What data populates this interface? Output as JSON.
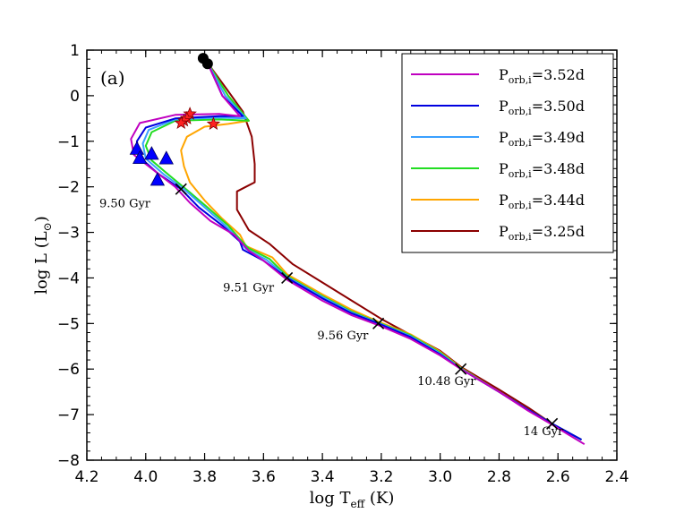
{
  "chart_data": {
    "type": "line",
    "panel_label": "(a)",
    "xlabel": {
      "main": "log T",
      "sub": "eff",
      "unit": " (K)"
    },
    "ylabel": {
      "main": "log L (L",
      "sub": "⊙",
      "close": ")"
    },
    "xlim": [
      4.2,
      2.4
    ],
    "ylim": [
      -8,
      1
    ],
    "x_ticks": [
      4.2,
      4.0,
      3.8,
      3.6,
      3.4,
      3.2,
      3.0,
      2.8,
      2.6,
      2.4
    ],
    "x_tick_labels": [
      "4.2",
      "4.0",
      "3.8",
      "3.6",
      "3.4",
      "3.2",
      "3.0",
      "2.8",
      "2.6",
      "2.4"
    ],
    "y_ticks": [
      1,
      0,
      -1,
      -2,
      -3,
      -4,
      -5,
      -6,
      -7,
      -8
    ],
    "y_tick_labels": [
      "1",
      "0",
      "−1",
      "−2",
      "−3",
      "−4",
      "−5",
      "−6",
      "−7",
      "−8"
    ],
    "legend": {
      "position": "top-right",
      "prefix": "P",
      "sub": "orb,i",
      "entries": [
        {
          "label": "=3.52d",
          "color": "#c000c0"
        },
        {
          "label": "=3.50d",
          "color": "#0000e0"
        },
        {
          "label": "=3.49d",
          "color": "#3aa0ff"
        },
        {
          "label": "=3.48d",
          "color": "#22dd22"
        },
        {
          "label": "=3.44d",
          "color": "#ffa500"
        },
        {
          "label": "=3.25d",
          "color": "#8b0000"
        }
      ]
    },
    "series": [
      {
        "name": "P_orb,i=3.52d",
        "color": "#c000c0",
        "points": [
          [
            3.79,
            0.72
          ],
          [
            3.74,
            0.0
          ],
          [
            3.68,
            -0.45
          ],
          [
            3.75,
            -0.4
          ],
          [
            3.9,
            -0.42
          ],
          [
            4.02,
            -0.6
          ],
          [
            4.05,
            -0.95
          ],
          [
            4.04,
            -1.3
          ],
          [
            3.98,
            -1.6
          ],
          [
            3.9,
            -2.0
          ],
          [
            3.85,
            -2.35
          ],
          [
            3.78,
            -2.75
          ],
          [
            3.7,
            -3.05
          ],
          [
            3.65,
            -3.4
          ],
          [
            3.6,
            -3.62
          ],
          [
            3.52,
            -4.04
          ],
          [
            3.4,
            -4.5
          ],
          [
            3.3,
            -4.82
          ],
          [
            3.2,
            -5.06
          ],
          [
            3.1,
            -5.34
          ],
          [
            3.0,
            -5.7
          ],
          [
            2.93,
            -6.0
          ],
          [
            2.8,
            -6.5
          ],
          [
            2.7,
            -6.92
          ],
          [
            2.62,
            -7.22
          ],
          [
            2.51,
            -7.65
          ]
        ]
      },
      {
        "name": "P_orb,i=3.50d",
        "color": "#0000e0",
        "points": [
          [
            3.79,
            0.72
          ],
          [
            3.74,
            0.0
          ],
          [
            3.67,
            -0.45
          ],
          [
            3.75,
            -0.45
          ],
          [
            3.9,
            -0.5
          ],
          [
            4.0,
            -0.7
          ],
          [
            4.03,
            -1.0
          ],
          [
            4.02,
            -1.35
          ],
          [
            3.96,
            -1.7
          ],
          [
            3.88,
            -2.05
          ],
          [
            3.82,
            -2.45
          ],
          [
            3.74,
            -2.85
          ],
          [
            3.68,
            -3.2
          ],
          [
            3.67,
            -3.38
          ],
          [
            3.6,
            -3.62
          ],
          [
            3.52,
            -4.0
          ],
          [
            3.4,
            -4.45
          ],
          [
            3.3,
            -4.78
          ],
          [
            3.21,
            -5.0
          ],
          [
            3.1,
            -5.3
          ],
          [
            3.0,
            -5.68
          ],
          [
            2.93,
            -6.0
          ],
          [
            2.8,
            -6.5
          ],
          [
            2.7,
            -6.9
          ],
          [
            2.62,
            -7.2
          ],
          [
            2.52,
            -7.55
          ]
        ]
      },
      {
        "name": "P_orb,i=3.49d",
        "color": "#3aa0ff",
        "points": [
          [
            3.79,
            0.72
          ],
          [
            3.73,
            0.0
          ],
          [
            3.66,
            -0.5
          ],
          [
            3.75,
            -0.48
          ],
          [
            3.9,
            -0.52
          ],
          [
            3.99,
            -0.75
          ],
          [
            4.01,
            -1.05
          ],
          [
            4.0,
            -1.38
          ],
          [
            3.94,
            -1.72
          ],
          [
            3.87,
            -2.05
          ],
          [
            3.8,
            -2.45
          ],
          [
            3.73,
            -2.85
          ],
          [
            3.68,
            -3.18
          ],
          [
            3.66,
            -3.36
          ],
          [
            3.59,
            -3.6
          ],
          [
            3.52,
            -3.98
          ],
          [
            3.4,
            -4.42
          ],
          [
            3.3,
            -4.76
          ],
          [
            3.21,
            -4.99
          ],
          [
            3.1,
            -5.28
          ],
          [
            3.0,
            -5.66
          ],
          [
            2.93,
            -5.99
          ],
          [
            2.8,
            -6.5
          ],
          [
            2.7,
            -6.9
          ],
          [
            2.62,
            -7.2
          ],
          [
            2.52,
            -7.55
          ]
        ]
      },
      {
        "name": "P_orb,i=3.48d",
        "color": "#22dd22",
        "points": [
          [
            3.79,
            0.72
          ],
          [
            3.72,
            0.0
          ],
          [
            3.65,
            -0.55
          ],
          [
            3.75,
            -0.52
          ],
          [
            3.9,
            -0.55
          ],
          [
            3.98,
            -0.8
          ],
          [
            4.0,
            -1.1
          ],
          [
            3.98,
            -1.42
          ],
          [
            3.92,
            -1.75
          ],
          [
            3.86,
            -2.07
          ],
          [
            3.79,
            -2.45
          ],
          [
            3.72,
            -2.85
          ],
          [
            3.68,
            -3.15
          ],
          [
            3.65,
            -3.35
          ],
          [
            3.58,
            -3.58
          ],
          [
            3.52,
            -3.96
          ],
          [
            3.4,
            -4.4
          ],
          [
            3.3,
            -4.74
          ],
          [
            3.21,
            -4.98
          ],
          [
            3.1,
            -5.26
          ],
          [
            3.0,
            -5.64
          ],
          [
            2.93,
            -5.98
          ],
          [
            2.8,
            -6.5
          ],
          [
            2.7,
            -6.9
          ],
          [
            2.62,
            -7.2
          ],
          [
            2.52,
            -7.55
          ]
        ]
      },
      {
        "name": "P_orb,i=3.44d",
        "color": "#ffa500",
        "points": [
          [
            3.79,
            0.72
          ],
          [
            3.72,
            0.0
          ],
          [
            3.65,
            -0.55
          ],
          [
            3.72,
            -0.62
          ],
          [
            3.8,
            -0.68
          ],
          [
            3.86,
            -0.9
          ],
          [
            3.88,
            -1.2
          ],
          [
            3.87,
            -1.55
          ],
          [
            3.85,
            -1.9
          ],
          [
            3.8,
            -2.3
          ],
          [
            3.74,
            -2.7
          ],
          [
            3.68,
            -3.05
          ],
          [
            3.66,
            -3.3
          ],
          [
            3.57,
            -3.55
          ],
          [
            3.52,
            -3.92
          ],
          [
            3.4,
            -4.36
          ],
          [
            3.3,
            -4.7
          ],
          [
            3.21,
            -4.96
          ],
          [
            3.1,
            -5.24
          ],
          [
            3.0,
            -5.62
          ],
          [
            2.93,
            -5.97
          ],
          [
            2.8,
            -6.5
          ],
          [
            2.7,
            -6.9
          ],
          [
            2.62,
            -7.2
          ],
          [
            2.52,
            -7.55
          ]
        ]
      },
      {
        "name": "P_orb,i=3.25d",
        "color": "#8b0000",
        "points": [
          [
            3.79,
            0.72
          ],
          [
            3.72,
            0.1
          ],
          [
            3.67,
            -0.35
          ],
          [
            3.64,
            -0.9
          ],
          [
            3.63,
            -1.5
          ],
          [
            3.63,
            -1.9
          ],
          [
            3.66,
            -2.0
          ],
          [
            3.69,
            -2.1
          ],
          [
            3.69,
            -2.5
          ],
          [
            3.65,
            -2.95
          ],
          [
            3.58,
            -3.25
          ],
          [
            3.5,
            -3.7
          ],
          [
            3.4,
            -4.1
          ],
          [
            3.3,
            -4.5
          ],
          [
            3.2,
            -4.9
          ],
          [
            3.1,
            -5.25
          ],
          [
            3.0,
            -5.6
          ],
          [
            2.93,
            -5.95
          ],
          [
            2.8,
            -6.45
          ],
          [
            2.7,
            -6.85
          ],
          [
            2.62,
            -7.2
          ],
          [
            2.52,
            -7.55
          ]
        ]
      }
    ],
    "markers": {
      "circles": {
        "color": "#000000",
        "points": [
          [
            3.805,
            0.82
          ],
          [
            3.79,
            0.7
          ]
        ]
      },
      "stars": {
        "color": "#ff2222",
        "points": [
          [
            3.85,
            -0.4
          ],
          [
            3.86,
            -0.5
          ],
          [
            3.87,
            -0.55
          ],
          [
            3.88,
            -0.6
          ],
          [
            3.77,
            -0.62
          ]
        ]
      },
      "triangles": {
        "color": "#0000ff",
        "points": [
          [
            4.03,
            -1.17
          ],
          [
            4.02,
            -1.37
          ],
          [
            3.98,
            -1.28
          ],
          [
            3.93,
            -1.38
          ],
          [
            3.96,
            -1.85
          ]
        ]
      },
      "crosses": {
        "color": "#000000",
        "points": [
          [
            3.88,
            -2.05
          ],
          [
            3.52,
            -4.0
          ],
          [
            3.21,
            -5.0
          ],
          [
            2.93,
            -6.0
          ],
          [
            2.62,
            -7.2
          ]
        ]
      }
    },
    "age_labels": [
      {
        "text": "9.50 Gyr",
        "x": 4.2,
        "y": -2.45
      },
      {
        "text": "9.51 Gyr",
        "x": 3.78,
        "y": -4.3
      },
      {
        "text": "9.56 Gyr",
        "x": 3.46,
        "y": -5.35
      },
      {
        "text": "10.48 Gyr",
        "x": 3.12,
        "y": -6.35
      },
      {
        "text": "14 Gyr",
        "x": 2.76,
        "y": -7.45
      }
    ]
  }
}
